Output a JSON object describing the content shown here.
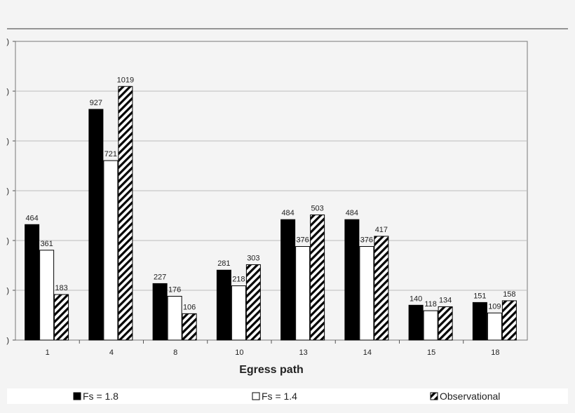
{
  "chart_data": {
    "type": "bar",
    "title": "",
    "xlabel": "Egress path",
    "ylabel": "",
    "categories": [
      "1",
      "4",
      "8",
      "10",
      "13",
      "14",
      "15",
      "18"
    ],
    "series": [
      {
        "name": "Fs = 1.8",
        "values": [
          464,
          927,
          227,
          281,
          484,
          484,
          140,
          151
        ]
      },
      {
        "name": "Fs = 1.4",
        "values": [
          361,
          721,
          176,
          218,
          376,
          376,
          118,
          109
        ]
      },
      {
        "name": "Observational",
        "values": [
          183,
          1019,
          106,
          303,
          503,
          417,
          134,
          158
        ]
      }
    ],
    "ylim": [
      0,
      1200
    ],
    "ytick_step": 200,
    "ytick_labels_visible": ")",
    "grid": true,
    "legend_placement": "bottom",
    "colors": {
      "series_1": "#000000",
      "series_2": "#ffffff",
      "series_3_hatch": "#000000",
      "gridline": "#bdbdbd",
      "axis": "#555555",
      "plot_background": "#f4f4f4"
    }
  }
}
